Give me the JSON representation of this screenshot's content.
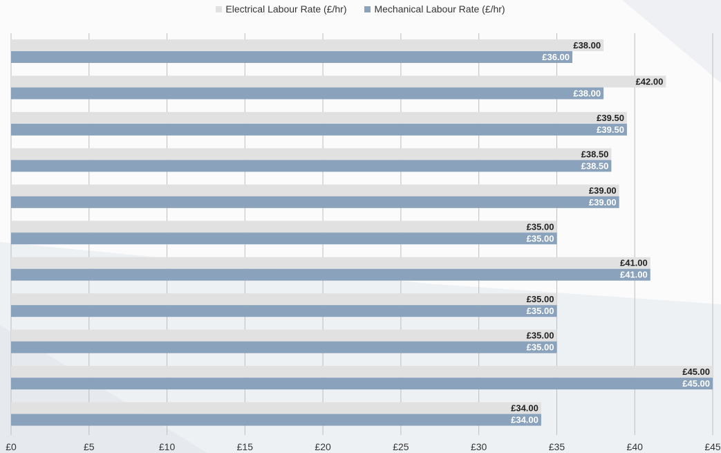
{
  "legend": {
    "electrical_label": "Electrical Labour Rate (£/hr)",
    "mechanical_label": "Mechanical Labour Rate (£/hr)"
  },
  "colors": {
    "electrical": "#e1e1e1",
    "mechanical": "#8aa2bb",
    "grid": "#bdbdbd",
    "electrical_text": "#222222",
    "mechanical_text": "#ffffff"
  },
  "chart_data": {
    "type": "bar",
    "orientation": "horizontal",
    "xlim": [
      0,
      45
    ],
    "x_ticks": [
      0,
      5,
      10,
      15,
      20,
      25,
      30,
      35,
      40,
      45
    ],
    "x_tick_labels": [
      "£0",
      "£5",
      "£10",
      "£15",
      "£20",
      "£25",
      "£30",
      "£35",
      "£40",
      "£45"
    ],
    "categories": [
      "",
      "",
      "",
      "",
      "",
      "",
      "",
      "",
      "",
      "",
      ""
    ],
    "series": [
      {
        "name": "Electrical Labour Rate (£/hr)",
        "values": [
          38.0,
          42.0,
          39.5,
          38.5,
          39.0,
          35.0,
          41.0,
          35.0,
          35.0,
          45.0,
          34.0
        ],
        "labels": [
          "£38.00",
          "£42.00",
          "£39.50",
          "£38.50",
          "£39.00",
          "£35.00",
          "£41.00",
          "£35.00",
          "£35.00",
          "£45.00",
          "£34.00"
        ]
      },
      {
        "name": "Mechanical Labour Rate (£/hr)",
        "values": [
          36.0,
          38.0,
          39.5,
          38.5,
          39.0,
          35.0,
          41.0,
          35.0,
          35.0,
          45.0,
          34.0
        ],
        "labels": [
          "£36.00",
          "£38.00",
          "£39.50",
          "£38.50",
          "£39.00",
          "£35.00",
          "£41.00",
          "£35.00",
          "£35.00",
          "£45.00",
          "£34.00"
        ]
      }
    ],
    "grid": true,
    "legend_position": "top-center",
    "title": "",
    "xlabel": "",
    "ylabel": ""
  }
}
